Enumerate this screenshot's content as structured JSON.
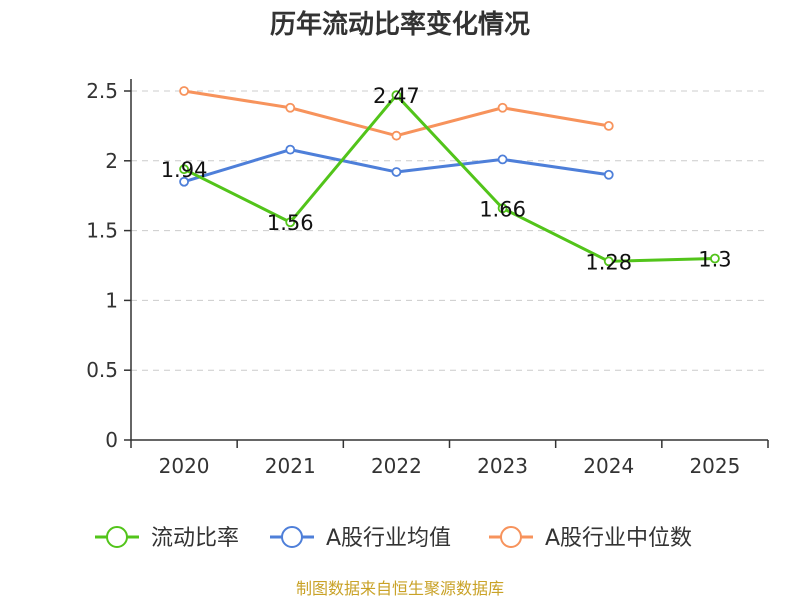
{
  "chart_data": {
    "type": "line",
    "title": "历年流动比率变化情况",
    "categories": [
      "2020",
      "2021",
      "2022",
      "2023",
      "2024",
      "2025"
    ],
    "y_ticks": [
      "0",
      "0.5",
      "1",
      "1.5",
      "2",
      "2.5"
    ],
    "ylim": [
      0,
      2.5
    ],
    "grid": true,
    "legend_position": "bottom",
    "series": [
      {
        "name": "流动比率",
        "color": "#52c41a",
        "values": [
          1.94,
          1.56,
          2.47,
          1.66,
          1.28,
          1.3
        ],
        "labels": [
          "1.94",
          "1.56",
          "2.47",
          "1.66",
          "1.28",
          "1.3"
        ]
      },
      {
        "name": "A股行业均值",
        "color": "#4e7fd9",
        "values": [
          1.85,
          2.08,
          1.92,
          2.01,
          1.9,
          null
        ]
      },
      {
        "name": "A股行业中位数",
        "color": "#f7935c",
        "values": [
          2.5,
          2.38,
          2.18,
          2.38,
          2.25,
          null
        ]
      }
    ]
  },
  "footer": {
    "source": "制图数据来自恒生聚源数据库",
    "source_color": "#c9a227"
  }
}
